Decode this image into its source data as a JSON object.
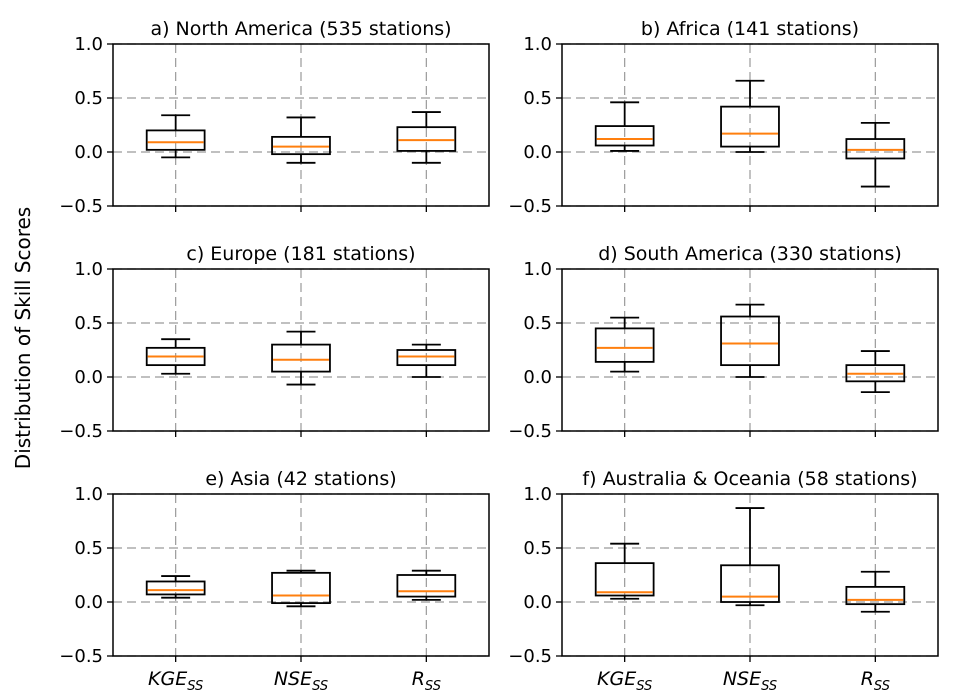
{
  "figure": {
    "ylabel": "Distribution of Skill Scores"
  },
  "chart_data": [
    {
      "type": "box",
      "title": "a) North America (535 stations)",
      "categories": [
        "KGE_SS",
        "NSE_SS",
        "R_SS"
      ],
      "category_labels": [
        {
          "main": "KGE",
          "sub": "SS"
        },
        {
          "main": "NSE",
          "sub": "SS"
        },
        {
          "main": "R",
          "sub": "SS"
        }
      ],
      "ylim": [
        -0.5,
        1.0
      ],
      "yticks": [
        -0.5,
        0.0,
        0.5,
        1.0
      ],
      "ytick_labels": [
        "−0.5",
        "0.0",
        "0.5",
        "1.0"
      ],
      "grid": true,
      "boxes": [
        {
          "whisker_low": -0.05,
          "q1": 0.02,
          "median": 0.09,
          "q3": 0.2,
          "whisker_high": 0.34
        },
        {
          "whisker_low": -0.1,
          "q1": -0.02,
          "median": 0.05,
          "q3": 0.14,
          "whisker_high": 0.32
        },
        {
          "whisker_low": -0.1,
          "q1": 0.01,
          "median": 0.11,
          "q3": 0.23,
          "whisker_high": 0.37
        }
      ]
    },
    {
      "type": "box",
      "title": "b) Africa (141 stations)",
      "categories": [
        "KGE_SS",
        "NSE_SS",
        "R_SS"
      ],
      "category_labels": [
        {
          "main": "KGE",
          "sub": "SS"
        },
        {
          "main": "NSE",
          "sub": "SS"
        },
        {
          "main": "R",
          "sub": "SS"
        }
      ],
      "ylim": [
        -0.5,
        1.0
      ],
      "yticks": [
        -0.5,
        0.0,
        0.5,
        1.0
      ],
      "ytick_labels": [
        "−0.5",
        "0.0",
        "0.5",
        "1.0"
      ],
      "grid": true,
      "boxes": [
        {
          "whisker_low": 0.01,
          "q1": 0.06,
          "median": 0.12,
          "q3": 0.24,
          "whisker_high": 0.46
        },
        {
          "whisker_low": 0.0,
          "q1": 0.05,
          "median": 0.17,
          "q3": 0.42,
          "whisker_high": 0.66
        },
        {
          "whisker_low": -0.32,
          "q1": -0.06,
          "median": 0.02,
          "q3": 0.12,
          "whisker_high": 0.27
        }
      ]
    },
    {
      "type": "box",
      "title": "c) Europe (181 stations)",
      "categories": [
        "KGE_SS",
        "NSE_SS",
        "R_SS"
      ],
      "category_labels": [
        {
          "main": "KGE",
          "sub": "SS"
        },
        {
          "main": "NSE",
          "sub": "SS"
        },
        {
          "main": "R",
          "sub": "SS"
        }
      ],
      "ylim": [
        -0.5,
        1.0
      ],
      "yticks": [
        -0.5,
        0.0,
        0.5,
        1.0
      ],
      "ytick_labels": [
        "−0.5",
        "0.0",
        "0.5",
        "1.0"
      ],
      "grid": true,
      "boxes": [
        {
          "whisker_low": 0.03,
          "q1": 0.11,
          "median": 0.19,
          "q3": 0.27,
          "whisker_high": 0.35
        },
        {
          "whisker_low": -0.07,
          "q1": 0.05,
          "median": 0.16,
          "q3": 0.3,
          "whisker_high": 0.42
        },
        {
          "whisker_low": 0.0,
          "q1": 0.11,
          "median": 0.19,
          "q3": 0.25,
          "whisker_high": 0.3
        }
      ]
    },
    {
      "type": "box",
      "title": "d) South America (330 stations)",
      "categories": [
        "KGE_SS",
        "NSE_SS",
        "R_SS"
      ],
      "category_labels": [
        {
          "main": "KGE",
          "sub": "SS"
        },
        {
          "main": "NSE",
          "sub": "SS"
        },
        {
          "main": "R",
          "sub": "SS"
        }
      ],
      "ylim": [
        -0.5,
        1.0
      ],
      "yticks": [
        -0.5,
        0.0,
        0.5,
        1.0
      ],
      "ytick_labels": [
        "−0.5",
        "0.0",
        "0.5",
        "1.0"
      ],
      "grid": true,
      "boxes": [
        {
          "whisker_low": 0.05,
          "q1": 0.14,
          "median": 0.27,
          "q3": 0.45,
          "whisker_high": 0.55
        },
        {
          "whisker_low": 0.0,
          "q1": 0.11,
          "median": 0.31,
          "q3": 0.56,
          "whisker_high": 0.67
        },
        {
          "whisker_low": -0.14,
          "q1": -0.04,
          "median": 0.03,
          "q3": 0.11,
          "whisker_high": 0.24
        }
      ]
    },
    {
      "type": "box",
      "title": "e) Asia (42 stations)",
      "categories": [
        "KGE_SS",
        "NSE_SS",
        "R_SS"
      ],
      "category_labels": [
        {
          "main": "KGE",
          "sub": "SS"
        },
        {
          "main": "NSE",
          "sub": "SS"
        },
        {
          "main": "R",
          "sub": "SS"
        }
      ],
      "ylim": [
        -0.5,
        1.0
      ],
      "yticks": [
        -0.5,
        0.0,
        0.5,
        1.0
      ],
      "ytick_labels": [
        "−0.5",
        "0.0",
        "0.5",
        "1.0"
      ],
      "grid": true,
      "boxes": [
        {
          "whisker_low": 0.04,
          "q1": 0.07,
          "median": 0.11,
          "q3": 0.19,
          "whisker_high": 0.24
        },
        {
          "whisker_low": -0.04,
          "q1": -0.01,
          "median": 0.06,
          "q3": 0.27,
          "whisker_high": 0.29
        },
        {
          "whisker_low": 0.02,
          "q1": 0.05,
          "median": 0.1,
          "q3": 0.25,
          "whisker_high": 0.29
        }
      ]
    },
    {
      "type": "box",
      "title": "f) Australia & Oceania (58 stations)",
      "categories": [
        "KGE_SS",
        "NSE_SS",
        "R_SS"
      ],
      "category_labels": [
        {
          "main": "KGE",
          "sub": "SS"
        },
        {
          "main": "NSE",
          "sub": "SS"
        },
        {
          "main": "R",
          "sub": "SS"
        }
      ],
      "ylim": [
        -0.5,
        1.0
      ],
      "yticks": [
        -0.5,
        0.0,
        0.5,
        1.0
      ],
      "ytick_labels": [
        "−0.5",
        "0.0",
        "0.5",
        "1.0"
      ],
      "grid": true,
      "boxes": [
        {
          "whisker_low": 0.03,
          "q1": 0.06,
          "median": 0.09,
          "q3": 0.36,
          "whisker_high": 0.54
        },
        {
          "whisker_low": -0.03,
          "q1": 0.0,
          "median": 0.05,
          "q3": 0.34,
          "whisker_high": 0.87
        },
        {
          "whisker_low": -0.09,
          "q1": -0.02,
          "median": 0.02,
          "q3": 0.14,
          "whisker_high": 0.28
        }
      ]
    }
  ],
  "colors": {
    "median": "#ff7f0e",
    "box": "#000000",
    "grid": "#9a9a9a"
  }
}
